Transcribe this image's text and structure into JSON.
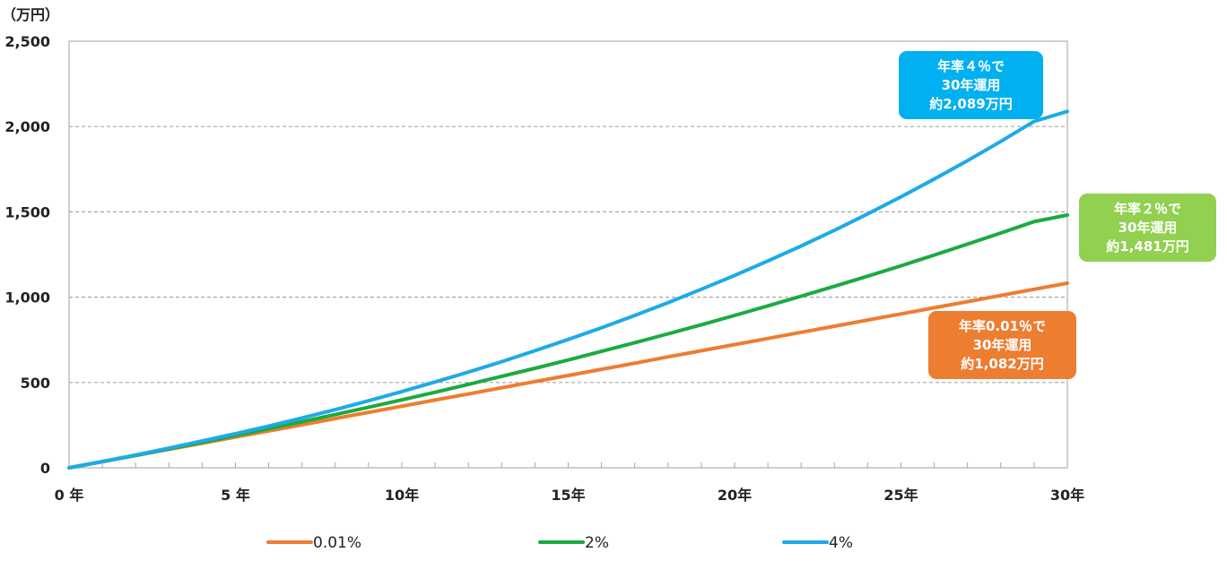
{
  "chart_data": {
    "type": "line",
    "unit_label": "（万円）",
    "title": "",
    "xlabel": "",
    "ylabel": "",
    "xlim": [
      0,
      30
    ],
    "ylim": [
      0,
      2500
    ],
    "y_ticks": [
      0,
      500,
      1000,
      1500,
      2000,
      2500
    ],
    "y_tick_labels": [
      "0",
      "500",
      "1,000",
      "1,500",
      "2,000",
      "2,500"
    ],
    "x_ticks": [
      0,
      5,
      10,
      15,
      20,
      25,
      30
    ],
    "x_tick_labels": [
      "0 年",
      "5 年",
      "10年",
      "15年",
      "20年",
      "25年",
      "30年"
    ],
    "grid": "horizontal-dashed",
    "legend_position": "bottom",
    "x": [
      0,
      1,
      2,
      3,
      4,
      5,
      6,
      7,
      8,
      9,
      10,
      11,
      12,
      13,
      14,
      15,
      16,
      17,
      18,
      19,
      20,
      21,
      22,
      23,
      24,
      25,
      26,
      27,
      28,
      29,
      30
    ],
    "series": [
      {
        "name": "0.01%",
        "color": "#ed7d31",
        "values": [
          0,
          36,
          72,
          108,
          144,
          180,
          216,
          252,
          289,
          325,
          361,
          397,
          433,
          469,
          505,
          541,
          577,
          613,
          650,
          686,
          722,
          758,
          794,
          830,
          866,
          902,
          938,
          974,
          1010,
          1046,
          1082
        ]
      },
      {
        "name": "2%",
        "color": "#1aab40",
        "values": [
          0,
          36,
          73,
          111,
          149,
          189,
          229,
          270,
          312,
          355,
          398,
          443,
          489,
          536,
          583,
          632,
          682,
          733,
          785,
          838,
          893,
          949,
          1006,
          1064,
          1123,
          1184,
          1247,
          1311,
          1376,
          1443,
          1481
        ]
      },
      {
        "name": "4%",
        "color": "#1eaae7",
        "values": [
          0,
          37,
          75,
          115,
          157,
          200,
          245,
          292,
          341,
          393,
          447,
          503,
          561,
          622,
          686,
          752,
          821,
          893,
          968,
          1046,
          1127,
          1212,
          1300,
          1392,
          1488,
          1588,
          1692,
          1800,
          1913,
          2030,
          2089
        ]
      }
    ],
    "annotations": [
      {
        "series": "4%",
        "color": "#00b0f0",
        "lines": [
          "年率４％で",
          "30年運用",
          "約2,089万円"
        ]
      },
      {
        "series": "2%",
        "color": "#92d050",
        "lines": [
          "年率２％で",
          "30年運用",
          "約1,481万円"
        ]
      },
      {
        "series": "0.01%",
        "color": "#ed7d31",
        "lines": [
          "年率0.01％で",
          "30年運用",
          "約1,082万円"
        ]
      }
    ]
  }
}
